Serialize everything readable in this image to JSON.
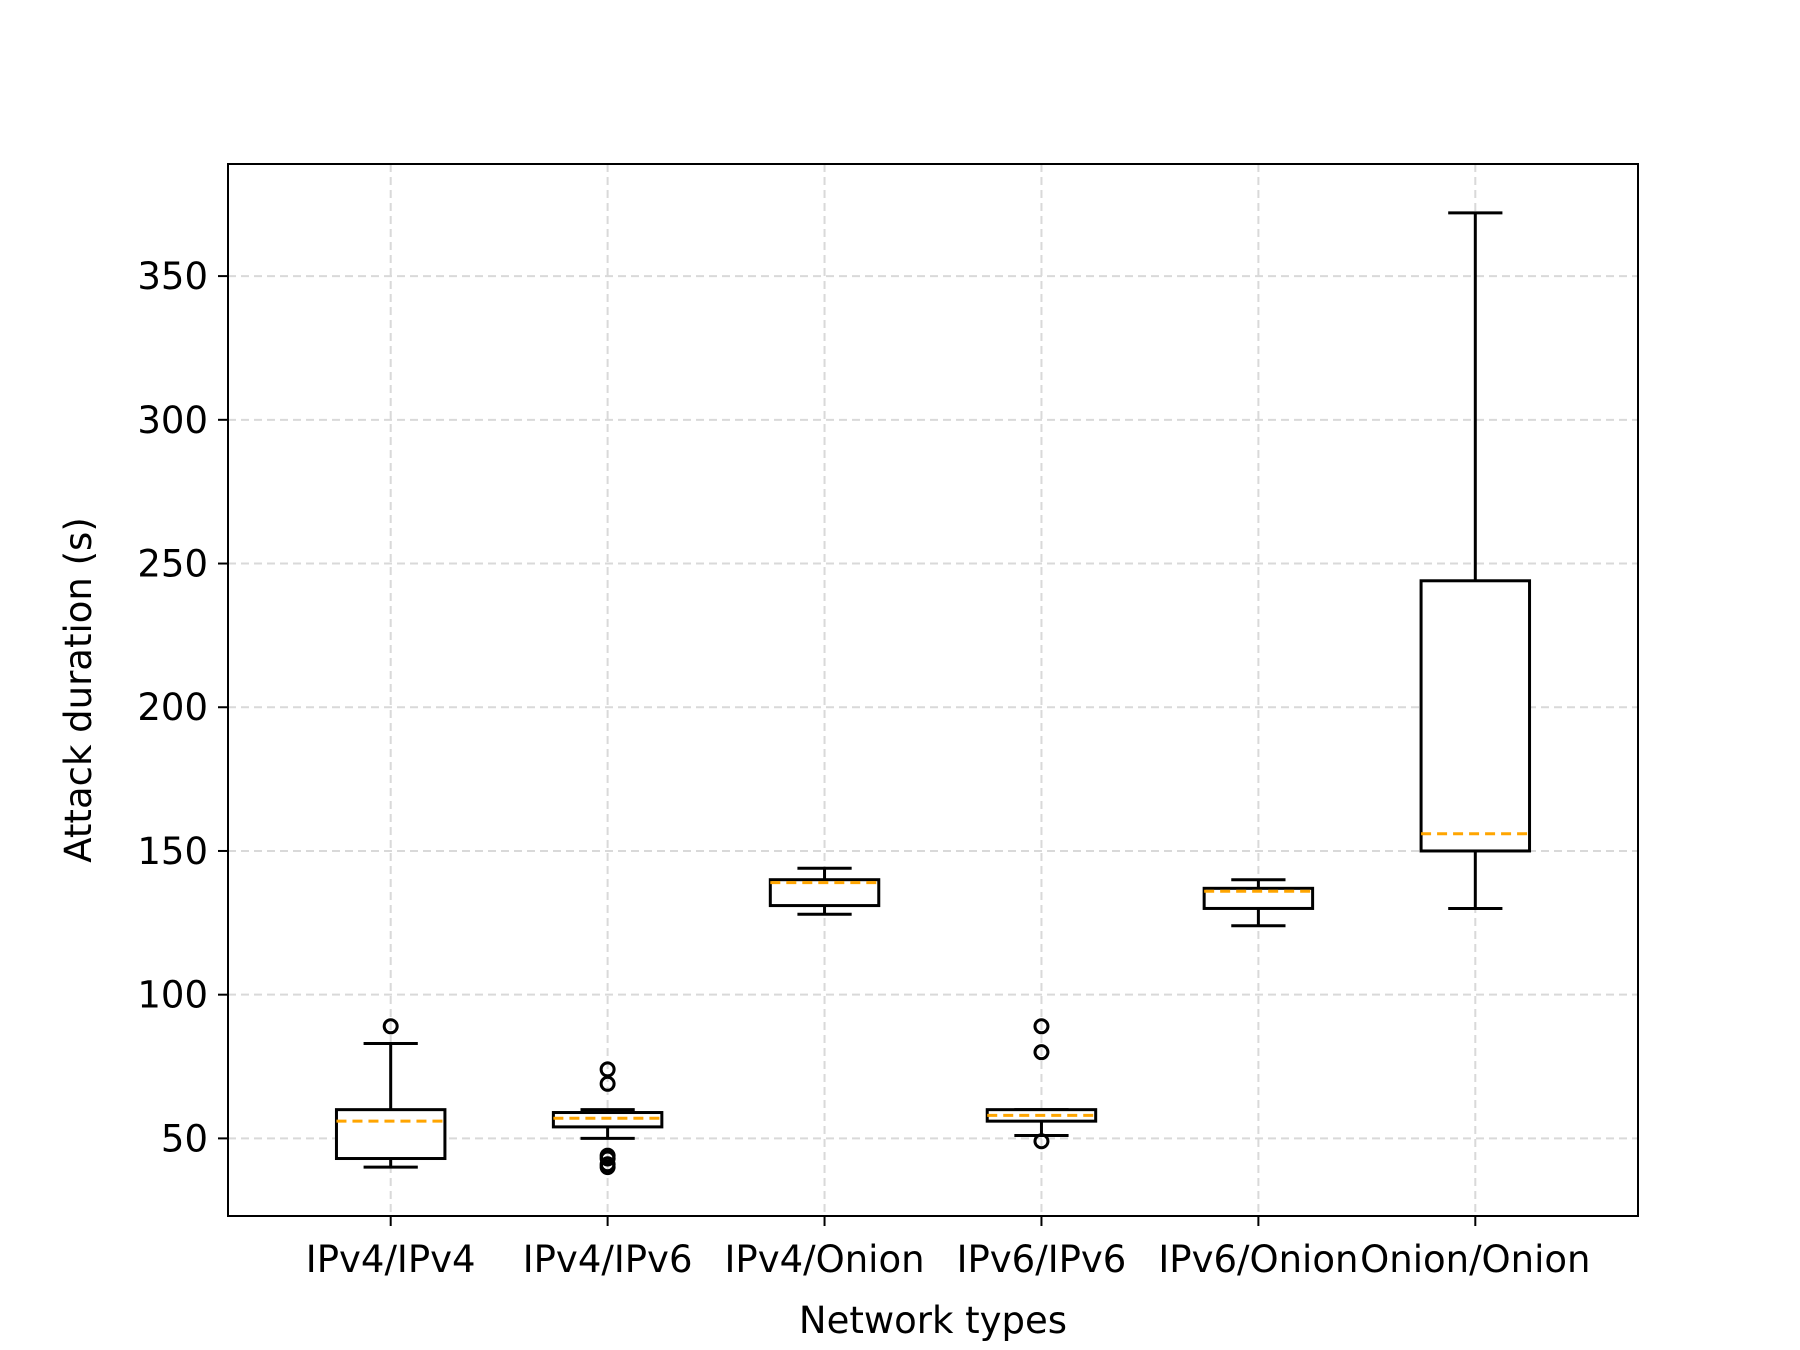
{
  "chart_data": {
    "type": "box",
    "title": "",
    "xlabel": "Network types",
    "ylabel": "Attack duration (s)",
    "ylim": [
      23,
      389
    ],
    "yticks": [
      50,
      100,
      150,
      200,
      250,
      300,
      350
    ],
    "grid": true,
    "categories": [
      "IPv4/IPv4",
      "IPv4/IPv6",
      "IPv4/Onion",
      "IPv6/IPv6",
      "IPv6/Onion",
      "Onion/Onion"
    ],
    "boxes": [
      {
        "category": "IPv4/IPv4",
        "whisker_low": 40,
        "q1": 43,
        "median": 56,
        "q3": 60,
        "whisker_high": 83,
        "outliers": [
          89
        ]
      },
      {
        "category": "IPv4/IPv6",
        "whisker_low": 50,
        "q1": 54,
        "median": 57,
        "q3": 59,
        "whisker_high": 60,
        "outliers": [
          74,
          69,
          44,
          43,
          41,
          40
        ]
      },
      {
        "category": "IPv4/Onion",
        "whisker_low": 128,
        "q1": 131,
        "median": 139,
        "q3": 140,
        "whisker_high": 144,
        "outliers": []
      },
      {
        "category": "IPv6/IPv6",
        "whisker_low": 51,
        "q1": 56,
        "median": 58,
        "q3": 60,
        "whisker_high": 60,
        "outliers": [
          89,
          80,
          49
        ]
      },
      {
        "category": "IPv6/Onion",
        "whisker_low": 124,
        "q1": 130,
        "median": 136,
        "q3": 137,
        "whisker_high": 140,
        "outliers": []
      },
      {
        "category": "Onion/Onion",
        "whisker_low": 130,
        "q1": 150,
        "median": 156,
        "q3": 244,
        "whisker_high": 372,
        "outliers": []
      }
    ],
    "colors": {
      "box": "#000000",
      "median": "#ffa500",
      "grid": "#d9d9d9"
    }
  }
}
